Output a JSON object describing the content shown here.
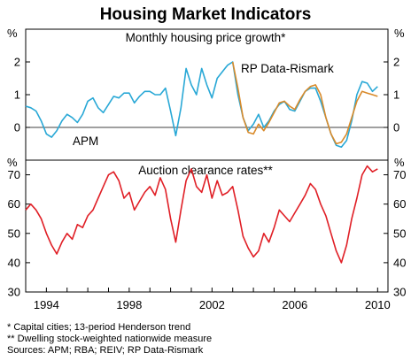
{
  "title": "Housing Market Indicators",
  "notes": [
    "*    Capital cities; 13-period Henderson trend",
    "**  Dwelling stock-weighted nationwide measure",
    "Sources: APM; RBA; REIV; RP Data-Rismark"
  ],
  "colors": {
    "apm": "#29a8d6",
    "rp": "#d98a2a",
    "auction": "#e01f26",
    "axis": "#000000",
    "grid": "#000000"
  },
  "chart_data": [
    {
      "type": "line",
      "title": "Monthly housing price growth*",
      "ylabel": "%",
      "ylim": [
        -1,
        3
      ],
      "yticks": [
        0,
        1,
        2
      ],
      "xlim": [
        1993.0,
        2010.5
      ],
      "xticks": [
        1994,
        1998,
        2002,
        2006,
        2010
      ],
      "series": [
        {
          "name": "APM",
          "color": "#29a8d6",
          "x": [
            1993.0,
            1993.25,
            1993.5,
            1993.75,
            1994.0,
            1994.25,
            1994.5,
            1994.75,
            1995.0,
            1995.25,
            1995.5,
            1995.75,
            1996.0,
            1996.25,
            1996.5,
            1996.75,
            1997.0,
            1997.25,
            1997.5,
            1997.75,
            1998.0,
            1998.25,
            1998.5,
            1998.75,
            1999.0,
            1999.25,
            1999.5,
            1999.75,
            2000.0,
            2000.25,
            2000.5,
            2000.75,
            2001.0,
            2001.25,
            2001.5,
            2001.75,
            2002.0,
            2002.25,
            2002.5,
            2002.75,
            2003.0,
            2003.25,
            2003.5,
            2003.75,
            2004.0,
            2004.25,
            2004.5,
            2004.75,
            2005.0,
            2005.25,
            2005.5,
            2005.75,
            2006.0,
            2006.25,
            2006.5,
            2006.75,
            2007.0,
            2007.25,
            2007.5,
            2007.75,
            2008.0,
            2008.25,
            2008.5,
            2008.75,
            2009.0,
            2009.25,
            2009.5,
            2009.75,
            2010.0
          ],
          "values": [
            0.65,
            0.6,
            0.5,
            0.2,
            -0.2,
            -0.3,
            -0.1,
            0.2,
            0.4,
            0.3,
            0.15,
            0.4,
            0.8,
            0.9,
            0.6,
            0.45,
            0.7,
            0.95,
            0.9,
            1.05,
            1.05,
            0.75,
            0.95,
            1.1,
            1.1,
            1.0,
            1.0,
            1.2,
            0.5,
            -0.25,
            0.6,
            1.8,
            1.3,
            1.0,
            1.8,
            1.3,
            0.9,
            1.5,
            1.7,
            1.9,
            2.0,
            1.0,
            0.3,
            -0.1,
            0.1,
            0.4,
            0.0,
            0.2,
            0.5,
            0.7,
            0.8,
            0.55,
            0.5,
            0.8,
            1.1,
            1.2,
            1.2,
            0.8,
            0.3,
            -0.2,
            -0.55,
            -0.6,
            -0.4,
            0.2,
            1.0,
            1.4,
            1.35,
            1.1,
            1.25
          ]
        },
        {
          "name": "RP Data-Rismark",
          "color": "#d98a2a",
          "x": [
            2003.0,
            2003.25,
            2003.5,
            2003.75,
            2004.0,
            2004.25,
            2004.5,
            2004.75,
            2005.0,
            2005.25,
            2005.5,
            2005.75,
            2006.0,
            2006.25,
            2006.5,
            2006.75,
            2007.0,
            2007.25,
            2007.5,
            2007.75,
            2008.0,
            2008.25,
            2008.5,
            2008.75,
            2009.0,
            2009.25,
            2009.5,
            2009.75,
            2010.0
          ],
          "values": [
            2.0,
            1.2,
            0.3,
            -0.15,
            -0.2,
            0.1,
            -0.1,
            0.15,
            0.45,
            0.75,
            0.8,
            0.65,
            0.55,
            0.85,
            1.1,
            1.25,
            1.3,
            1.0,
            0.3,
            -0.2,
            -0.5,
            -0.45,
            -0.2,
            0.3,
            0.8,
            1.1,
            1.05,
            1.0,
            0.95
          ]
        }
      ]
    },
    {
      "type": "line",
      "title": "Auction clearance rates**",
      "ylabel": "%",
      "ylim": [
        30,
        75
      ],
      "yticks": [
        30,
        40,
        50,
        60,
        70
      ],
      "xlim": [
        1993.0,
        2010.5
      ],
      "xticks": [
        1994,
        1998,
        2002,
        2006,
        2010
      ],
      "series": [
        {
          "name": "",
          "color": "#e01f26",
          "x": [
            1993.0,
            1993.25,
            1993.5,
            1993.75,
            1994.0,
            1994.25,
            1994.5,
            1994.75,
            1995.0,
            1995.25,
            1995.5,
            1995.75,
            1996.0,
            1996.25,
            1996.5,
            1996.75,
            1997.0,
            1997.25,
            1997.5,
            1997.75,
            1998.0,
            1998.25,
            1998.5,
            1998.75,
            1999.0,
            1999.25,
            1999.5,
            1999.75,
            2000.0,
            2000.25,
            2000.5,
            2000.75,
            2001.0,
            2001.25,
            2001.5,
            2001.75,
            2002.0,
            2002.25,
            2002.5,
            2002.75,
            2003.0,
            2003.25,
            2003.5,
            2003.75,
            2004.0,
            2004.25,
            2004.5,
            2004.75,
            2005.0,
            2005.25,
            2005.5,
            2005.75,
            2006.0,
            2006.25,
            2006.5,
            2006.75,
            2007.0,
            2007.25,
            2007.5,
            2007.75,
            2008.0,
            2008.25,
            2008.5,
            2008.75,
            2009.0,
            2009.25,
            2009.5,
            2009.75,
            2010.0
          ],
          "values": [
            58,
            60,
            58,
            55,
            50,
            46,
            43,
            47,
            50,
            48,
            53,
            52,
            56,
            58,
            62,
            66,
            70,
            71,
            68,
            62,
            64,
            58,
            61,
            64,
            66,
            63,
            69,
            65,
            55,
            47,
            58,
            68,
            72,
            66,
            64,
            70,
            62,
            68,
            63,
            64,
            66,
            58,
            49,
            45,
            42,
            44,
            50,
            47,
            52,
            58,
            56,
            54,
            57,
            60,
            63,
            67,
            65,
            60,
            56,
            50,
            44,
            40,
            46,
            55,
            62,
            70,
            73,
            71,
            72
          ]
        }
      ]
    }
  ]
}
